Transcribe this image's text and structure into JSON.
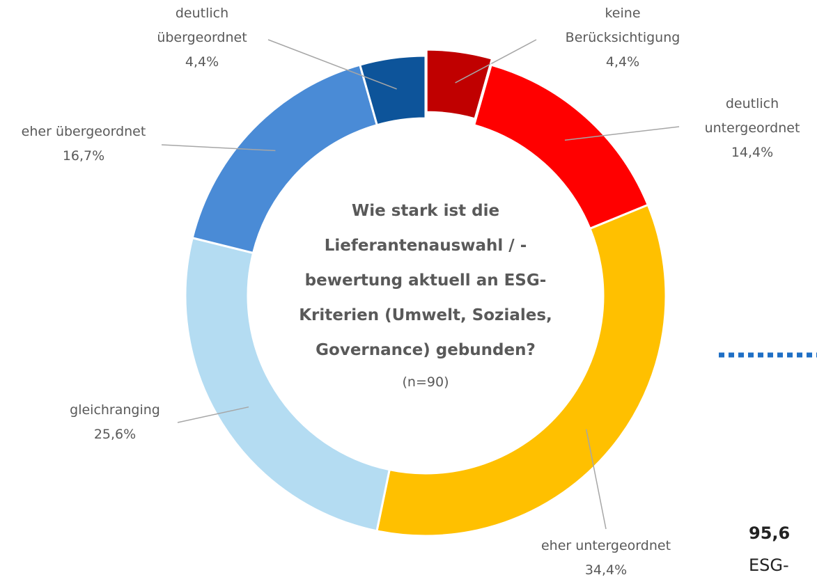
{
  "chart_data": {
    "type": "donut",
    "title": "Wie stark ist die\nLieferantenauswahl / -\nbewertung aktuell an ESG-\nKriterien (Umwelt, Soziales,\nGovernance) gebunden?",
    "subtitle": "(n=90)",
    "categories": [
      "keine\nBerücksichtigung",
      "deutlich\nuntergeordnet",
      "eher untergeordnet",
      "gleichranging",
      "eher übergeordnet",
      "deutlich\nübergeordnet"
    ],
    "values": [
      4.4,
      14.4,
      34.4,
      25.6,
      16.7,
      4.4
    ],
    "value_labels": [
      "4,4%",
      "14,4%",
      "34,4%",
      "25,6%",
      "16,7%",
      "4,4%"
    ],
    "colors": [
      "#c00000",
      "#ff0000",
      "#ffc000",
      "#b4dcf2",
      "#4a8bd6",
      "#0d549a"
    ],
    "annotations": [
      "95,6",
      "ESG-"
    ]
  }
}
